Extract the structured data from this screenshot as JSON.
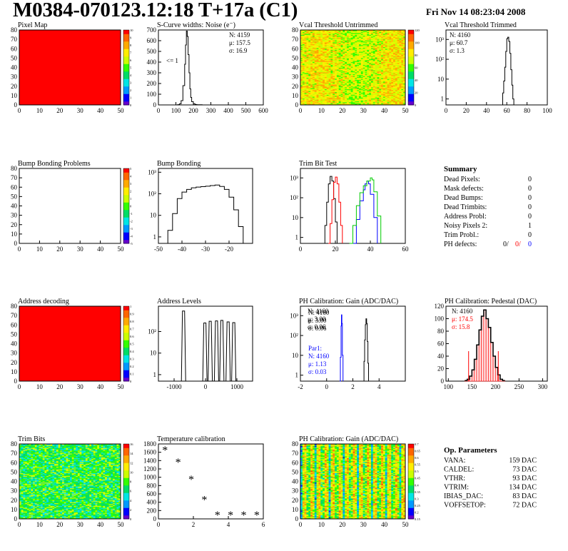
{
  "header": {
    "title": "M0384-070123.12:18 T+17a (C1)",
    "datetime": "Fri Nov 14 08:23:04 2008"
  },
  "colors": {
    "line": "#000000",
    "red": "#ff0000",
    "blue": "#0000ff",
    "green": "#00cc00",
    "palette": [
      "#6600cc",
      "#0000ff",
      "#0099ff",
      "#00e5e5",
      "#00dd66",
      "#33ff00",
      "#ccff00",
      "#ffee00",
      "#ffaa00",
      "#ff6600",
      "#ff0000"
    ]
  },
  "chart_data": [
    {
      "id": "pixel_map",
      "type": "heatmap",
      "title": "Pixel Map",
      "xlim": [
        0,
        52
      ],
      "ylim": [
        0,
        80
      ],
      "xticks": [
        "0",
        "10",
        "20",
        "30",
        "40",
        "50"
      ],
      "yticks": [
        "0",
        "10",
        "20",
        "30",
        "40",
        "50",
        "60",
        "70",
        "80"
      ],
      "zticks": [
        "0",
        "1",
        "2",
        "3",
        "4",
        "5",
        "6",
        "7",
        "8",
        "9",
        "10"
      ],
      "fill_level": 1.0
    },
    {
      "id": "scurve_noise",
      "type": "line",
      "title": "S-Curve widths: Noise (e⁻)",
      "xlim": [
        0,
        600
      ],
      "ylim": [
        0,
        700
      ],
      "xticks": [
        "0",
        "100",
        "200",
        "300",
        "400",
        "500",
        "600"
      ],
      "yticks": [
        "0",
        "100",
        "200",
        "300",
        "400",
        "500",
        "600",
        "700"
      ],
      "stats": [
        "N: 4159",
        "μ: 157.5",
        "σ: 16.9"
      ],
      "annotation": "<= 1",
      "x": [
        100,
        110,
        120,
        130,
        140,
        150,
        155,
        160,
        165,
        170,
        175,
        180,
        185,
        190,
        200,
        210,
        220,
        230,
        250
      ],
      "y": [
        0,
        3,
        10,
        40,
        180,
        380,
        560,
        690,
        640,
        470,
        300,
        150,
        70,
        30,
        10,
        4,
        2,
        1,
        0
      ]
    },
    {
      "id": "vcal_untrimmed",
      "type": "heatmap",
      "title": "Vcal Threshold Untrimmed",
      "xlim": [
        0,
        52
      ],
      "ylim": [
        0,
        80
      ],
      "xticks": [
        "0",
        "10",
        "20",
        "30",
        "40",
        "50"
      ],
      "yticks": [
        "0",
        "10",
        "20",
        "30",
        "40",
        "50",
        "60",
        "70",
        "80"
      ],
      "zticks": [
        "0",
        "20",
        "40",
        "60",
        "80",
        "100",
        "120"
      ]
    },
    {
      "id": "vcal_trimmed",
      "type": "line",
      "title": "Vcal Threshold Trimmed",
      "log_y": true,
      "xlim": [
        0,
        100
      ],
      "ylim": [
        0.5,
        3000
      ],
      "xticks": [
        "0",
        "20",
        "40",
        "60",
        "80",
        "100"
      ],
      "yticks": [
        "1",
        "10",
        "10²",
        "10³"
      ],
      "stats": [
        "N: 4160",
        "μ: 60.7",
        "σ:  1.3"
      ],
      "x": [
        55,
        56,
        57,
        58,
        59,
        60,
        61,
        62,
        63,
        64,
        65,
        66,
        67
      ],
      "y": [
        0.5,
        2,
        8,
        40,
        250,
        1100,
        1300,
        800,
        200,
        30,
        5,
        1,
        0.5
      ]
    },
    {
      "id": "bump_problems",
      "type": "heatmap",
      "title": "Bump Bonding Problems",
      "xlim": [
        0,
        52
      ],
      "ylim": [
        0,
        80
      ],
      "xticks": [
        "0",
        "10",
        "20",
        "30",
        "40",
        "50"
      ],
      "yticks": [
        "0",
        "10",
        "20",
        "30",
        "40",
        "50",
        "60",
        "70",
        "80"
      ],
      "zticks": [
        "-5",
        "-4",
        "-3",
        "-2",
        "-1",
        "0",
        "1",
        "2",
        "3",
        "4",
        "5"
      ],
      "fill_level": 0.0
    },
    {
      "id": "bump_bonding",
      "type": "line",
      "title": "Bump Bonding",
      "log_y": true,
      "xlim": [
        -50,
        -10
      ],
      "ylim": [
        0.5,
        1500
      ],
      "xticks": [
        "-50",
        "-40",
        "-30",
        "-20"
      ],
      "yticks": [
        "1",
        "10",
        "10²",
        "10³"
      ],
      "x": [
        -48,
        -46,
        -44,
        -42,
        -40,
        -38,
        -36,
        -34,
        -32,
        -30,
        -28,
        -26,
        -24,
        -22,
        -20,
        -18,
        -16,
        -14
      ],
      "y": [
        0.5,
        2,
        12,
        60,
        120,
        160,
        190,
        205,
        215,
        225,
        240,
        255,
        220,
        160,
        70,
        18,
        3,
        0.5
      ]
    },
    {
      "id": "trim_bit_test",
      "type": "line",
      "title": "Trim Bit Test",
      "log_y": true,
      "xlim": [
        0,
        60
      ],
      "ylim": [
        0.5,
        3000
      ],
      "xticks": [
        "0",
        "20",
        "40",
        "60"
      ],
      "yticks": [
        "1",
        "10",
        "10²",
        "10³"
      ],
      "series": [
        {
          "color": "black",
          "x": [
            13,
            14,
            15,
            16,
            17,
            18,
            19,
            20,
            21
          ],
          "y": [
            0.5,
            4,
            60,
            500,
            1200,
            700,
            90,
            6,
            0.5
          ]
        },
        {
          "color": "red",
          "x": [
            16,
            17,
            18,
            19,
            20,
            21,
            22,
            23,
            24
          ],
          "y": [
            0.5,
            5,
            80,
            600,
            1100,
            500,
            60,
            4,
            0.5
          ]
        },
        {
          "color": "blue",
          "x": [
            30,
            32,
            34,
            36,
            37,
            38,
            39,
            40,
            42,
            44
          ],
          "y": [
            0.5,
            8,
            70,
            250,
            500,
            700,
            500,
            150,
            10,
            0.5
          ]
        },
        {
          "color": "green",
          "x": [
            28,
            30,
            32,
            34,
            36,
            38,
            40,
            41,
            42,
            44,
            46
          ],
          "y": [
            0.5,
            4,
            40,
            180,
            400,
            700,
            1000,
            800,
            200,
            12,
            0.5
          ]
        }
      ]
    },
    {
      "id": "address_decoding",
      "type": "heatmap",
      "title": "Address decoding",
      "xlim": [
        0,
        52
      ],
      "ylim": [
        0,
        80
      ],
      "xticks": [
        "0",
        "10",
        "20",
        "30",
        "40",
        "50"
      ],
      "yticks": [
        "0",
        "10",
        "20",
        "30",
        "40",
        "50",
        "60",
        "70",
        "80"
      ],
      "zticks": [
        "0",
        "0.1",
        "0.2",
        "0.3",
        "0.4",
        "0.5",
        "0.6",
        "0.7",
        "0.8",
        "0.9",
        "1"
      ],
      "fill_level": 1.0
    },
    {
      "id": "address_levels",
      "type": "bar",
      "title": "Address Levels",
      "log_y": true,
      "xlim": [
        -1500,
        1500
      ],
      "ylim": [
        0.5,
        1500
      ],
      "xticks": [
        "-1000",
        "0",
        "1000"
      ],
      "yticks": [
        "1",
        "10",
        "10²"
      ],
      "peaks": [
        {
          "x": -700,
          "y": 900
        },
        {
          "x": -20,
          "y": 250
        },
        {
          "x": 150,
          "y": 300
        },
        {
          "x": 350,
          "y": 310
        },
        {
          "x": 520,
          "y": 330
        },
        {
          "x": 720,
          "y": 280
        },
        {
          "x": 900,
          "y": 260
        }
      ]
    },
    {
      "id": "ph_gain",
      "type": "line",
      "title": "PH Calibration: Gain (ADC/DAC)",
      "log_y": true,
      "xlim": [
        -2,
        6
      ],
      "ylim": [
        0.5,
        3000
      ],
      "xticks": [
        "-2",
        "0",
        "2",
        "4"
      ],
      "yticks": [
        "1",
        "10",
        "10²",
        "10³"
      ],
      "stats": [
        "N: 4160",
        "μ: 3.00",
        "σ: 0.06"
      ],
      "stats2": [
        "Par1:",
        "N: 4160",
        "μ: 1.13",
        "σ: 0.03"
      ],
      "series": [
        {
          "color": "blue",
          "x": [
            1.0,
            1.05,
            1.1,
            1.13,
            1.16,
            1.2,
            1.25
          ],
          "y": [
            0.5,
            8,
            300,
            1100,
            400,
            10,
            0.5
          ]
        },
        {
          "color": "black",
          "x": [
            2.8,
            2.85,
            2.9,
            2.95,
            3.0,
            3.05,
            3.1,
            3.15,
            3.2
          ],
          "y": [
            0.5,
            5,
            60,
            350,
            700,
            400,
            50,
            4,
            0.5
          ]
        }
      ]
    },
    {
      "id": "ph_pedestal",
      "type": "bar",
      "title": "PH Calibration: Pedestal (DAC)",
      "xlim": [
        120,
        310
      ],
      "ylim": [
        0,
        120
      ],
      "xticks": [
        "100",
        "150",
        "200",
        "250",
        "300"
      ],
      "yticks": [
        "0",
        "20",
        "40",
        "60",
        "80",
        "100",
        "120"
      ],
      "stats": [
        "N: 4160",
        "μ: 174.5",
        "σ: 15.8"
      ],
      "cut_lines": [
        143,
        206
      ],
      "x": [
        135,
        140,
        145,
        150,
        155,
        160,
        165,
        170,
        175,
        180,
        185,
        190,
        195,
        200,
        205,
        210,
        215
      ],
      "y": [
        1,
        3,
        8,
        18,
        35,
        58,
        82,
        104,
        114,
        100,
        86,
        62,
        40,
        22,
        10,
        3,
        1
      ]
    },
    {
      "id": "trim_bits",
      "type": "heatmap",
      "title": "Trim Bits",
      "xlim": [
        0,
        52
      ],
      "ylim": [
        0,
        80
      ],
      "xticks": [
        "0",
        "10",
        "20",
        "30",
        "40",
        "50"
      ],
      "yticks": [
        "0",
        "10",
        "20",
        "30",
        "40",
        "50",
        "60",
        "70",
        "80"
      ],
      "zticks": [
        "0",
        "2",
        "4",
        "6",
        "8",
        "10",
        "12",
        "14",
        "16"
      ]
    },
    {
      "id": "temperature_calibration",
      "type": "scatter",
      "title": "Temperature calibration",
      "xlim": [
        -0.5,
        7.5
      ],
      "ylim": [
        0,
        1800
      ],
      "xticks": [
        "0",
        "2",
        "4",
        "6"
      ],
      "yticks": [
        "0",
        "200",
        "400",
        "600",
        "800",
        "1000",
        "1200",
        "1400",
        "1600",
        "1800"
      ],
      "x": [
        0,
        1,
        2,
        3,
        4,
        5,
        6,
        7
      ],
      "y": [
        1660,
        1370,
        960,
        470,
        100,
        100,
        100,
        100
      ]
    },
    {
      "id": "ph_gain_map",
      "type": "heatmap",
      "title": "PH Calibration: Gain (ADC/DAC)",
      "xlim": [
        0,
        52
      ],
      "ylim": [
        0,
        80
      ],
      "xticks": [
        "0",
        "10",
        "20",
        "30",
        "40",
        "50"
      ],
      "yticks": [
        "0",
        "10",
        "20",
        "30",
        "40",
        "50",
        "60",
        "70",
        "80"
      ],
      "zticks": [
        "0.15",
        "0.2",
        "0.25",
        "0.3",
        "0.35",
        "0.4",
        "0.45",
        "0.5",
        "0.55",
        "0.6",
        "0.65",
        "0.7"
      ]
    }
  ],
  "summary": {
    "title": "Summary",
    "rows": [
      {
        "label": "Dead Pixels:",
        "value": "0"
      },
      {
        "label": "Mask defects:",
        "value": "0"
      },
      {
        "label": "Dead Bumps:",
        "value": "0"
      },
      {
        "label": "Dead Trimbits:",
        "value": "0"
      },
      {
        "label": "Address Probl:",
        "value": "0"
      },
      {
        "label": "Noisy Pixels 2:",
        "value": "1"
      },
      {
        "label": "Trim Probl.:",
        "value": "0"
      }
    ],
    "ph_defects": {
      "label": "PH defects:",
      "v1": "0/",
      "v2": "0/",
      "v3": "0"
    }
  },
  "op_params": {
    "title": "Op. Parameters",
    "rows": [
      {
        "label": "VANA:",
        "value": "159 DAC"
      },
      {
        "label": "CALDEL:",
        "value": "73 DAC"
      },
      {
        "label": "VTHR:",
        "value": "93 DAC"
      },
      {
        "label": "VTRIM:",
        "value": "134 DAC"
      },
      {
        "label": "IBIAS_DAC:",
        "value": "83 DAC"
      },
      {
        "label": "VOFFSETOP:",
        "value": "72 DAC"
      }
    ]
  }
}
